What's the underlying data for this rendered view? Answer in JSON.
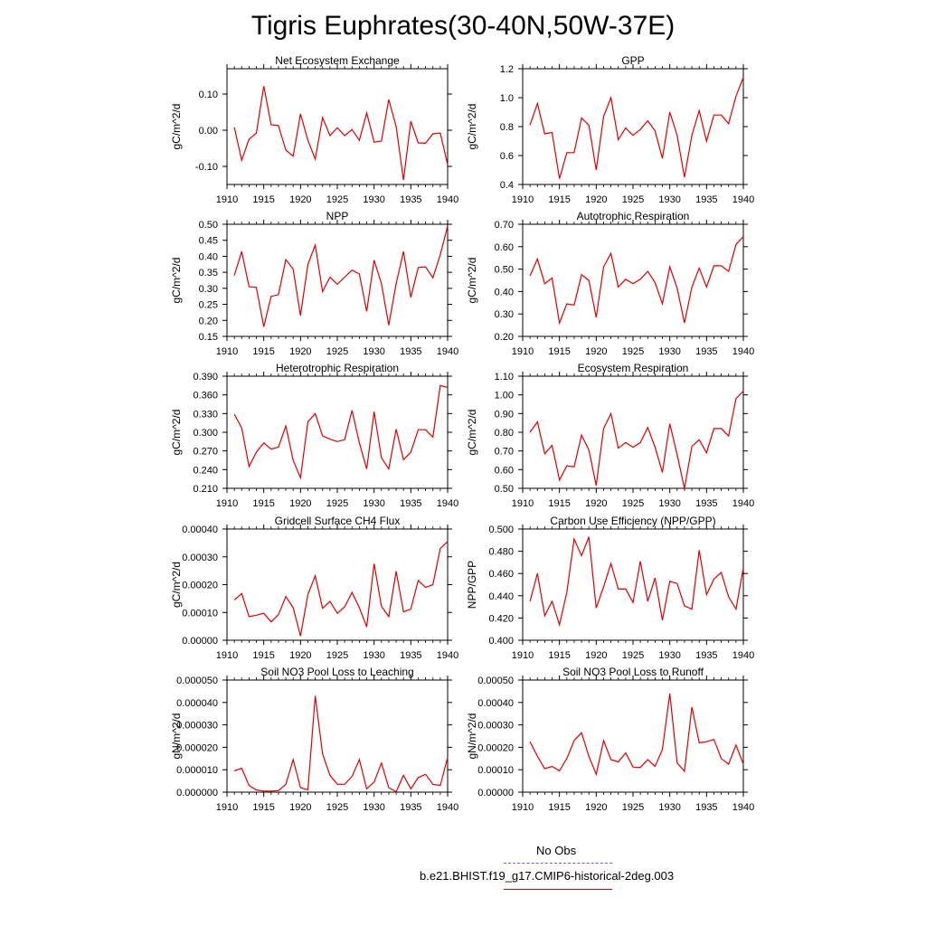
{
  "title": "Tigris Euphrates(30-40N,50W-37E)",
  "colors": {
    "series": "#e00000",
    "axis": "#000000",
    "obs": "#6666dd"
  },
  "legend": {
    "entries": [
      {
        "label": "No Obs",
        "style": "dashed",
        "color": "#6666dd"
      },
      {
        "label": "b.e21.BHIST.f19_g17.CMIP6-historical-2deg.003",
        "style": "solid",
        "color": "#e00000"
      }
    ]
  },
  "chart_data": [
    {
      "type": "line",
      "title": "Net Ecosystem Exchange",
      "ylabel": "gC/m^2/d",
      "xlabel": "",
      "xlim": [
        1910,
        1940
      ],
      "ylim": [
        -0.15,
        0.17
      ],
      "xticks": [
        1910,
        1915,
        1920,
        1925,
        1930,
        1935,
        1940
      ],
      "yticks": [
        -0.1,
        0.0,
        0.1
      ],
      "ytick_labels": [
        "-0.10",
        "0.00",
        "0.10"
      ],
      "x": [
        1911,
        1912,
        1913,
        1914,
        1915,
        1916,
        1917,
        1918,
        1919,
        1920,
        1921,
        1922,
        1923,
        1924,
        1925,
        1926,
        1927,
        1928,
        1929,
        1930,
        1931,
        1932,
        1933,
        1934,
        1935,
        1936,
        1937,
        1938,
        1939,
        1940
      ],
      "y": [
        0.008,
        -0.083,
        -0.025,
        -0.008,
        0.122,
        0.015,
        0.013,
        -0.055,
        -0.072,
        0.045,
        -0.028,
        -0.08,
        0.035,
        -0.015,
        0.007,
        -0.015,
        0.002,
        -0.028,
        0.048,
        -0.033,
        -0.03,
        0.085,
        0.01,
        -0.138,
        0.025,
        -0.035,
        -0.036,
        -0.01,
        -0.008,
        -0.095
      ]
    },
    {
      "type": "line",
      "title": "GPP",
      "ylabel": "gC/m^2/d",
      "xlabel": "",
      "xlim": [
        1910,
        1940
      ],
      "ylim": [
        0.4,
        1.2
      ],
      "xticks": [
        1910,
        1915,
        1920,
        1925,
        1930,
        1935,
        1940
      ],
      "yticks": [
        0.4,
        0.6,
        0.8,
        1.0,
        1.2
      ],
      "ytick_labels": [
        "0.4",
        "0.6",
        "0.8",
        "1.0",
        "1.2"
      ],
      "x": [
        1911,
        1912,
        1913,
        1914,
        1915,
        1916,
        1917,
        1918,
        1919,
        1920,
        1921,
        1922,
        1923,
        1924,
        1925,
        1926,
        1927,
        1928,
        1929,
        1930,
        1931,
        1932,
        1933,
        1934,
        1935,
        1936,
        1937,
        1938,
        1939,
        1940
      ],
      "y": [
        0.81,
        0.96,
        0.75,
        0.76,
        0.44,
        0.62,
        0.62,
        0.86,
        0.81,
        0.5,
        0.87,
        1.0,
        0.71,
        0.79,
        0.74,
        0.78,
        0.84,
        0.77,
        0.58,
        0.9,
        0.74,
        0.45,
        0.74,
        0.91,
        0.7,
        0.88,
        0.88,
        0.82,
        1.01,
        1.14
      ]
    },
    {
      "type": "line",
      "title": "NPP",
      "ylabel": "gC/m^2/d",
      "xlabel": "",
      "xlim": [
        1910,
        1940
      ],
      "ylim": [
        0.15,
        0.5
      ],
      "xticks": [
        1910,
        1915,
        1920,
        1925,
        1930,
        1935,
        1940
      ],
      "yticks": [
        0.15,
        0.2,
        0.25,
        0.3,
        0.35,
        0.4,
        0.45,
        0.5
      ],
      "ytick_labels": [
        "0.15",
        "0.20",
        "0.25",
        "0.30",
        "0.35",
        "0.40",
        "0.45",
        "0.50"
      ],
      "x": [
        1911,
        1912,
        1913,
        1914,
        1915,
        1916,
        1917,
        1918,
        1919,
        1920,
        1921,
        1922,
        1923,
        1924,
        1925,
        1926,
        1927,
        1928,
        1929,
        1930,
        1931,
        1932,
        1933,
        1934,
        1935,
        1936,
        1937,
        1938,
        1939,
        1940
      ],
      "y": [
        0.34,
        0.415,
        0.305,
        0.303,
        0.18,
        0.275,
        0.28,
        0.39,
        0.36,
        0.215,
        0.375,
        0.435,
        0.29,
        0.335,
        0.313,
        0.335,
        0.357,
        0.345,
        0.228,
        0.388,
        0.315,
        0.185,
        0.315,
        0.415,
        0.272,
        0.365,
        0.367,
        0.333,
        0.405,
        0.495
      ]
    },
    {
      "type": "line",
      "title": "Autotrophic Respiration",
      "ylabel": "gC/m^2/d",
      "xlabel": "",
      "xlim": [
        1910,
        1940
      ],
      "ylim": [
        0.2,
        0.7
      ],
      "xticks": [
        1910,
        1915,
        1920,
        1925,
        1930,
        1935,
        1940
      ],
      "yticks": [
        0.2,
        0.3,
        0.4,
        0.5,
        0.6,
        0.7
      ],
      "ytick_labels": [
        "0.20",
        "0.30",
        "0.40",
        "0.50",
        "0.60",
        "0.70"
      ],
      "x": [
        1911,
        1912,
        1913,
        1914,
        1915,
        1916,
        1917,
        1918,
        1919,
        1920,
        1921,
        1922,
        1923,
        1924,
        1925,
        1926,
        1927,
        1928,
        1929,
        1930,
        1931,
        1932,
        1933,
        1934,
        1935,
        1936,
        1937,
        1938,
        1939,
        1940
      ],
      "y": [
        0.47,
        0.545,
        0.435,
        0.46,
        0.26,
        0.345,
        0.34,
        0.475,
        0.45,
        0.285,
        0.51,
        0.57,
        0.42,
        0.455,
        0.435,
        0.455,
        0.49,
        0.44,
        0.345,
        0.51,
        0.415,
        0.26,
        0.42,
        0.505,
        0.42,
        0.515,
        0.515,
        0.49,
        0.61,
        0.645
      ]
    },
    {
      "type": "line",
      "title": "Heterotrophic Respiration",
      "ylabel": "gC/m^2/d",
      "xlabel": "",
      "xlim": [
        1910,
        1940
      ],
      "ylim": [
        0.21,
        0.39
      ],
      "xticks": [
        1910,
        1915,
        1920,
        1925,
        1930,
        1935,
        1940
      ],
      "yticks": [
        0.21,
        0.24,
        0.27,
        0.3,
        0.33,
        0.36,
        0.39
      ],
      "ytick_labels": [
        "0.210",
        "0.240",
        "0.270",
        "0.300",
        "0.330",
        "0.360",
        "0.390"
      ],
      "x": [
        1911,
        1912,
        1913,
        1914,
        1915,
        1916,
        1917,
        1918,
        1919,
        1920,
        1921,
        1922,
        1923,
        1924,
        1925,
        1926,
        1927,
        1928,
        1929,
        1930,
        1931,
        1932,
        1933,
        1934,
        1935,
        1936,
        1937,
        1938,
        1939,
        1940
      ],
      "y": [
        0.329,
        0.307,
        0.245,
        0.268,
        0.283,
        0.273,
        0.276,
        0.31,
        0.255,
        0.227,
        0.317,
        0.33,
        0.294,
        0.289,
        0.285,
        0.288,
        0.335,
        0.283,
        0.241,
        0.333,
        0.259,
        0.241,
        0.305,
        0.256,
        0.268,
        0.304,
        0.304,
        0.292,
        0.375,
        0.372
      ]
    },
    {
      "type": "line",
      "title": "Ecosystem Respiration",
      "ylabel": "gC/m^2/d",
      "xlabel": "",
      "xlim": [
        1910,
        1940
      ],
      "ylim": [
        0.5,
        1.1
      ],
      "xticks": [
        1910,
        1915,
        1920,
        1925,
        1930,
        1935,
        1940
      ],
      "yticks": [
        0.5,
        0.6,
        0.7,
        0.8,
        0.9,
        1.0,
        1.1
      ],
      "ytick_labels": [
        "0.50",
        "0.60",
        "0.70",
        "0.80",
        "0.90",
        "1.00",
        "1.10"
      ],
      "x": [
        1911,
        1912,
        1913,
        1914,
        1915,
        1916,
        1917,
        1918,
        1919,
        1920,
        1921,
        1922,
        1923,
        1924,
        1925,
        1926,
        1927,
        1928,
        1929,
        1930,
        1931,
        1932,
        1933,
        1934,
        1935,
        1936,
        1937,
        1938,
        1939,
        1940
      ],
      "y": [
        0.8,
        0.855,
        0.685,
        0.73,
        0.545,
        0.62,
        0.615,
        0.785,
        0.705,
        0.515,
        0.82,
        0.9,
        0.715,
        0.745,
        0.72,
        0.745,
        0.825,
        0.72,
        0.585,
        0.845,
        0.68,
        0.5,
        0.725,
        0.76,
        0.69,
        0.82,
        0.82,
        0.78,
        0.98,
        1.02
      ]
    },
    {
      "type": "line",
      "title": "Gridcell Surface CH4 Flux",
      "ylabel": "gC/m^2/d",
      "xlabel": "",
      "xlim": [
        1910,
        1940
      ],
      "ylim": [
        0.0,
        0.0004
      ],
      "xticks": [
        1910,
        1915,
        1920,
        1925,
        1930,
        1935,
        1940
      ],
      "yticks": [
        0.0,
        0.0001,
        0.0002,
        0.0003,
        0.0004
      ],
      "ytick_labels": [
        "0.00000",
        "0.00010",
        "0.00020",
        "0.00030",
        "0.00040"
      ],
      "x": [
        1911,
        1912,
        1913,
        1914,
        1915,
        1916,
        1917,
        1918,
        1919,
        1920,
        1921,
        1922,
        1923,
        1924,
        1925,
        1926,
        1927,
        1928,
        1929,
        1930,
        1931,
        1932,
        1933,
        1934,
        1935,
        1936,
        1937,
        1938,
        1939,
        1940
      ],
      "y": [
        0.000145,
        0.000168,
        8.5e-05,
        9e-05,
        9.7e-05,
        6.6e-05,
        9.2e-05,
        0.000157,
        0.000117,
        1.5e-05,
        0.000165,
        0.000232,
        0.000115,
        0.00014,
        9.7e-05,
        0.00012,
        0.000172,
        0.000117,
        4.8e-05,
        0.000275,
        0.000122,
        8.5e-05,
        0.000248,
        0.000102,
        0.000112,
        0.000215,
        0.00019,
        0.0002,
        0.00033,
        0.000355
      ]
    },
    {
      "type": "line",
      "title": "Carbon Use Efficiency (NPP/GPP)",
      "ylabel": "NPP/GPP",
      "xlabel": "",
      "xlim": [
        1910,
        1940
      ],
      "ylim": [
        0.4,
        0.5
      ],
      "xticks": [
        1910,
        1915,
        1920,
        1925,
        1930,
        1935,
        1940
      ],
      "yticks": [
        0.4,
        0.42,
        0.44,
        0.46,
        0.48,
        0.5
      ],
      "ytick_labels": [
        "0.400",
        "0.420",
        "0.440",
        "0.460",
        "0.480",
        "0.500"
      ],
      "x": [
        1911,
        1912,
        1913,
        1914,
        1915,
        1916,
        1917,
        1918,
        1919,
        1920,
        1921,
        1922,
        1923,
        1924,
        1925,
        1926,
        1927,
        1928,
        1929,
        1930,
        1931,
        1932,
        1933,
        1934,
        1935,
        1936,
        1937,
        1938,
        1939,
        1940
      ],
      "y": [
        0.435,
        0.46,
        0.422,
        0.435,
        0.414,
        0.443,
        0.491,
        0.476,
        0.493,
        0.429,
        0.448,
        0.469,
        0.446,
        0.446,
        0.434,
        0.471,
        0.435,
        0.456,
        0.418,
        0.453,
        0.451,
        0.431,
        0.428,
        0.481,
        0.441,
        0.455,
        0.461,
        0.439,
        0.428,
        0.465
      ]
    },
    {
      "type": "line",
      "title": "Soil NO3 Pool Loss to Leaching",
      "ylabel": "gN/m^2/d",
      "xlabel": "",
      "xlim": [
        1910,
        1940
      ],
      "ylim": [
        0.0,
        5e-05
      ],
      "xticks": [
        1910,
        1915,
        1920,
        1925,
        1930,
        1935,
        1940
      ],
      "yticks": [
        0.0,
        1e-05,
        2e-05,
        3e-05,
        4e-05,
        5e-05
      ],
      "ytick_labels": [
        "0.000000",
        "0.000010",
        "0.000020",
        "0.000030",
        "0.000040",
        "0.000050"
      ],
      "x": [
        1911,
        1912,
        1913,
        1914,
        1915,
        1916,
        1917,
        1918,
        1919,
        1920,
        1921,
        1922,
        1923,
        1924,
        1925,
        1926,
        1927,
        1928,
        1929,
        1930,
        1931,
        1932,
        1933,
        1934,
        1935,
        1936,
        1937,
        1938,
        1939,
        1940
      ],
      "y": [
        9.5e-06,
        1.07e-05,
        3e-06,
        1e-06,
        5e-07,
        5e-07,
        7e-07,
        3.5e-06,
        1.45e-05,
        2e-06,
        1e-06,
        4.3e-05,
        1.7e-05,
        7.5e-06,
        3.5e-06,
        3.5e-06,
        7e-06,
        1.45e-05,
        1.5e-06,
        4.5e-06,
        1.3e-05,
        2e-06,
        2e-07,
        7.5e-06,
        1.5e-06,
        6.5e-06,
        8e-06,
        3.5e-06,
        3e-06,
        1.55e-05
      ]
    },
    {
      "type": "line",
      "title": "Soil NO3 Pool Loss to Runoff",
      "ylabel": "gN/m^2/d",
      "xlabel": "",
      "xlim": [
        1910,
        1940
      ],
      "ylim": [
        0.0,
        0.0005
      ],
      "xticks": [
        1910,
        1915,
        1920,
        1925,
        1930,
        1935,
        1940
      ],
      "yticks": [
        0.0,
        0.0001,
        0.0002,
        0.0003,
        0.0004,
        0.0005
      ],
      "ytick_labels": [
        "0.00000",
        "0.00010",
        "0.00020",
        "0.00030",
        "0.00040",
        "0.00050"
      ],
      "x": [
        1911,
        1912,
        1913,
        1914,
        1915,
        1916,
        1917,
        1918,
        1919,
        1920,
        1921,
        1922,
        1923,
        1924,
        1925,
        1926,
        1927,
        1928,
        1929,
        1930,
        1931,
        1932,
        1933,
        1934,
        1935,
        1936,
        1937,
        1938,
        1939,
        1940
      ],
      "y": [
        0.000225,
        0.00016,
        0.000105,
        0.000115,
        9.5e-05,
        0.00015,
        0.00023,
        0.000265,
        0.00016,
        8e-05,
        0.00023,
        0.000145,
        0.000135,
        0.000175,
        0.000112,
        0.00011,
        0.000145,
        0.000115,
        0.00019,
        0.00044,
        0.00013,
        9.3e-05,
        0.00038,
        0.00022,
        0.000225,
        0.000235,
        0.00015,
        0.000125,
        0.00021,
        0.000125
      ]
    }
  ]
}
